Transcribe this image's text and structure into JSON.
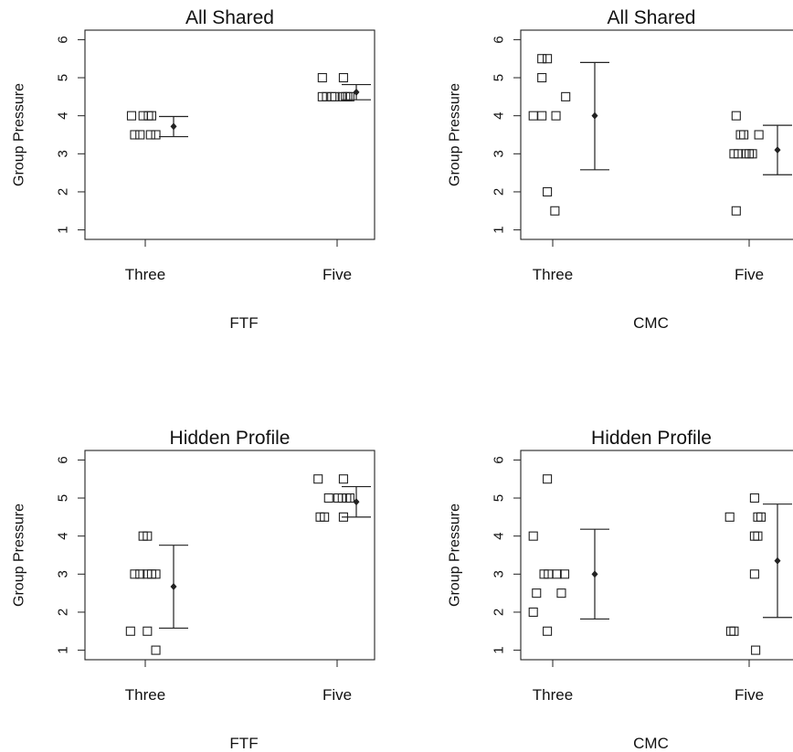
{
  "chart_data": [
    {
      "type": "scatter",
      "title": "All Shared",
      "xlabel": "FTF",
      "ylabel": "Group Pressure",
      "categories": [
        "Three",
        "Five"
      ],
      "yticks": [
        1,
        2,
        3,
        4,
        5,
        6
      ],
      "ylim": [
        0.75,
        6.25
      ],
      "groups": [
        {
          "category": "Three",
          "points": [
            4,
            4,
            4,
            4,
            3.5,
            3.5,
            3.5,
            3.5
          ],
          "offsets": [
            -0.13,
            -0.02,
            0.03,
            0.06,
            -0.1,
            -0.05,
            0.05,
            0.1
          ],
          "mean": 3.72,
          "lower": 3.45,
          "upper": 3.98
        },
        {
          "category": "Five",
          "points": [
            5,
            5,
            4.5,
            4.5,
            4.5,
            4.5,
            4.5,
            4.5,
            4.5,
            4.5
          ],
          "offsets": [
            -0.14,
            0.06,
            -0.14,
            -0.1,
            -0.05,
            -0.02,
            0.05,
            0.08,
            0.1,
            0.12
          ],
          "mean": 4.62,
          "lower": 4.42,
          "upper": 4.82
        }
      ]
    },
    {
      "type": "scatter",
      "title": "All Shared",
      "xlabel": "CMC",
      "ylabel": "Group Pressure",
      "categories": [
        "Three",
        "Five"
      ],
      "yticks": [
        1,
        2,
        3,
        4,
        5,
        6
      ],
      "ylim": [
        0.75,
        6.25
      ],
      "groups": [
        {
          "category": "Three",
          "points": [
            5.5,
            5.5,
            5,
            4.5,
            4,
            4,
            4,
            2,
            1.5
          ],
          "offsets": [
            -0.1,
            -0.05,
            -0.1,
            0.12,
            -0.18,
            -0.1,
            0.03,
            -0.05,
            0.02
          ],
          "mean": 4.0,
          "lower": 2.58,
          "upper": 5.4
        },
        {
          "category": "Five",
          "points": [
            4,
            3.5,
            3.5,
            3.5,
            3,
            3,
            3,
            3,
            3,
            1.5
          ],
          "offsets": [
            -0.12,
            -0.08,
            -0.05,
            0.09,
            -0.14,
            -0.1,
            -0.03,
            0.0,
            0.03,
            -0.12
          ],
          "mean": 3.1,
          "lower": 2.45,
          "upper": 3.75
        }
      ]
    },
    {
      "type": "scatter",
      "title": "Hidden Profile",
      "xlabel": "FTF",
      "ylabel": "Group Pressure",
      "categories": [
        "Three",
        "Five"
      ],
      "yticks": [
        1,
        2,
        3,
        4,
        5,
        6
      ],
      "ylim": [
        0.75,
        6.25
      ],
      "groups": [
        {
          "category": "Three",
          "points": [
            4,
            4,
            3,
            3,
            3,
            3,
            3,
            1.5,
            1.5,
            1
          ],
          "offsets": [
            -0.02,
            0.02,
            -0.1,
            -0.05,
            0.02,
            0.06,
            0.1,
            -0.14,
            0.02,
            0.1
          ],
          "mean": 2.67,
          "lower": 1.58,
          "upper": 3.76
        },
        {
          "category": "Five",
          "points": [
            5.5,
            5.5,
            5,
            5,
            5,
            5,
            5,
            4.5,
            4.5,
            4.5
          ],
          "offsets": [
            -0.18,
            0.06,
            -0.08,
            0.01,
            0.05,
            0.09,
            0.12,
            -0.16,
            -0.12,
            0.06
          ],
          "mean": 4.9,
          "lower": 4.5,
          "upper": 5.3
        }
      ]
    },
    {
      "type": "scatter",
      "title": "Hidden Profile",
      "xlabel": "CMC",
      "ylabel": "Group Pressure",
      "categories": [
        "Three",
        "Five"
      ],
      "yticks": [
        1,
        2,
        3,
        4,
        5,
        6
      ],
      "ylim": [
        0.75,
        6.25
      ],
      "groups": [
        {
          "category": "Three",
          "points": [
            5.5,
            4,
            3,
            3,
            3,
            3,
            2.5,
            2.5,
            2,
            1.5
          ],
          "offsets": [
            -0.05,
            -0.18,
            -0.08,
            -0.04,
            0.04,
            0.11,
            -0.15,
            0.08,
            -0.18,
            -0.05
          ],
          "mean": 3.0,
          "lower": 1.82,
          "upper": 4.18
        },
        {
          "category": "Five",
          "points": [
            5,
            4.5,
            4.5,
            4.5,
            4,
            4,
            3,
            1.5,
            1.5,
            1
          ],
          "offsets": [
            0.05,
            -0.18,
            0.08,
            0.11,
            0.05,
            0.08,
            0.05,
            -0.17,
            -0.14,
            0.06
          ],
          "mean": 3.35,
          "lower": 1.86,
          "upper": 4.84
        }
      ]
    }
  ]
}
